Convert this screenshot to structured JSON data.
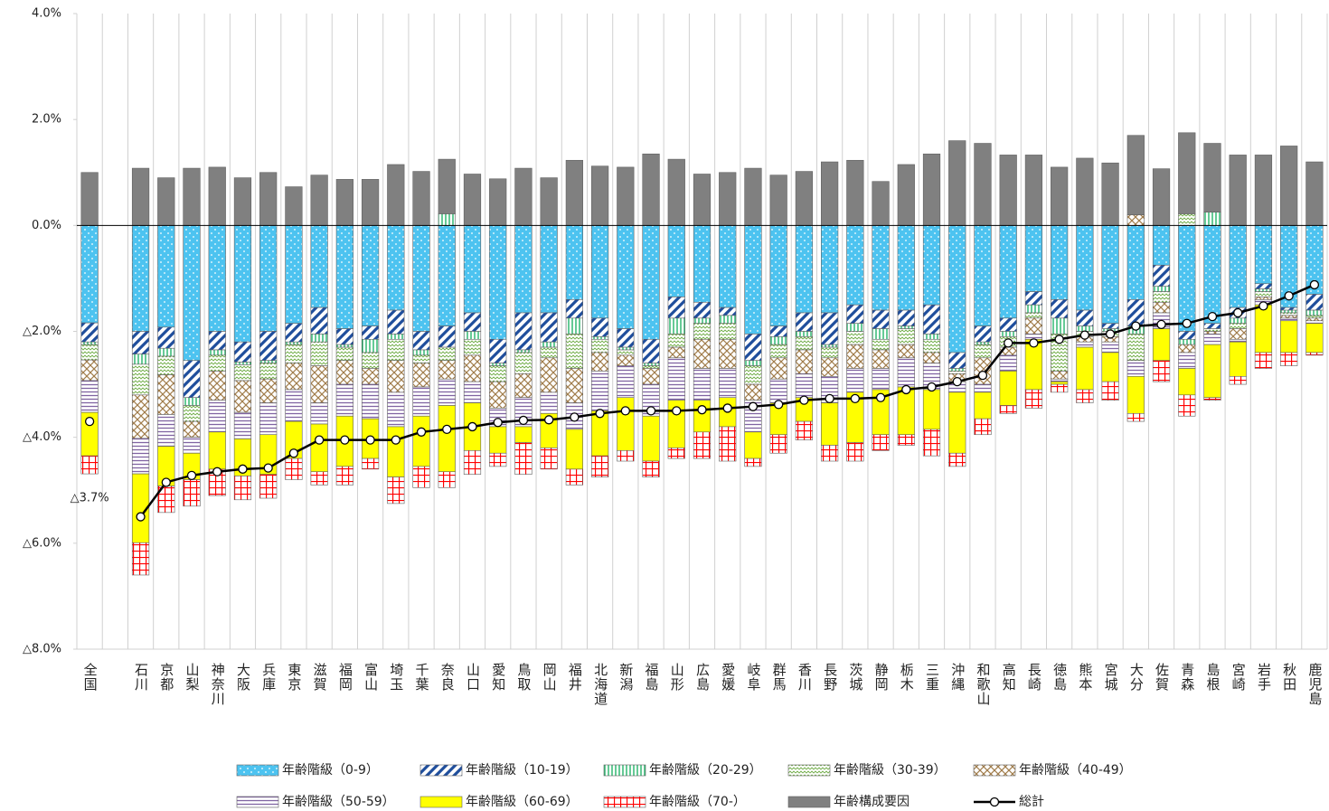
{
  "chart_data": {
    "type": "bar",
    "categories": [
      "全国",
      null,
      "石川",
      "京都",
      "山梨",
      "神奈川",
      "大阪",
      "兵庫",
      "東京",
      "滋賀",
      "福岡",
      "富山",
      "埼玉",
      "千葉",
      "奈良",
      "山口",
      "愛知",
      "鳥取",
      "岡山",
      "福井",
      "北海道",
      "新潟",
      "福島",
      "山形",
      "広島",
      "愛媛",
      "岐阜",
      "群馬",
      "香川",
      "長野",
      "茨城",
      "静岡",
      "栃木",
      "三重",
      "沖縄",
      "和歌山",
      "高知",
      "長崎",
      "徳島",
      "熊本",
      "宮城",
      "大分",
      "佐賀",
      "青森",
      "島根",
      "宮崎",
      "岩手",
      "秋田",
      "鹿児島"
    ],
    "ylim": [
      -8,
      4
    ],
    "yticks": [
      {
        "value": -8,
        "label": "△8.0%"
      },
      {
        "value": -6,
        "label": "△6.0%"
      },
      {
        "value": -4,
        "label": "△4.0%"
      },
      {
        "value": -2,
        "label": "△2.0%"
      },
      {
        "value": 0,
        "label": "0.0%"
      },
      {
        "value": 2,
        "label": "2.0%"
      },
      {
        "value": 4,
        "label": "4.0%"
      }
    ],
    "stacked": true,
    "series": [
      {
        "name": "年齢階級（0-9）",
        "color": "#4dc3f0",
        "values": [
          -1.84,
          null,
          -2.0,
          -1.92,
          -2.55,
          -2.0,
          -2.2,
          -2.0,
          -1.85,
          -1.55,
          -1.95,
          -1.9,
          -1.6,
          -2.0,
          -1.9,
          -1.65,
          -2.15,
          -1.65,
          -1.65,
          -1.4,
          -1.75,
          -1.95,
          -2.15,
          -1.35,
          -1.45,
          -1.55,
          -2.05,
          -1.9,
          -1.65,
          -1.65,
          -1.5,
          -1.6,
          -1.6,
          -1.5,
          -2.4,
          -1.9,
          -1.75,
          -1.25,
          -1.4,
          -1.6,
          -1.85,
          -1.4,
          -0.75,
          -2.0,
          -1.85,
          -1.55,
          -1.1,
          -1.55,
          -1.3
        ]
      },
      {
        "name": "年齢階級（10-19）",
        "color": "#1f4e9c",
        "values": [
          -0.36,
          null,
          -0.43,
          -0.4,
          -0.7,
          -0.35,
          -0.38,
          -0.55,
          -0.35,
          -0.5,
          -0.3,
          -0.25,
          -0.45,
          -0.35,
          -0.4,
          -0.35,
          -0.45,
          -0.7,
          -0.55,
          -0.35,
          -0.35,
          -0.35,
          -0.45,
          -0.4,
          -0.3,
          -0.15,
          -0.5,
          -0.2,
          -0.35,
          -0.6,
          -0.35,
          -0.35,
          -0.3,
          -0.55,
          -0.3,
          -0.3,
          -0.25,
          -0.25,
          -0.35,
          -0.3,
          -0.1,
          -0.5,
          -0.4,
          -0.15,
          -0.1,
          -0.2,
          -0.1,
          -0.05,
          -0.3
        ]
      },
      {
        "name": "年齢階級（20-29）",
        "color": "#00a651",
        "values": [
          -0.05,
          null,
          -0.19,
          -0.15,
          -0.15,
          -0.1,
          -0.05,
          -0.05,
          -0.05,
          -0.15,
          -0.05,
          -0.25,
          -0.1,
          -0.1,
          0.22,
          -0.15,
          -0.05,
          -0.05,
          -0.1,
          -0.3,
          -0.05,
          -0.05,
          -0.05,
          -0.3,
          -0.1,
          -0.15,
          -0.1,
          -0.15,
          -0.1,
          -0.05,
          -0.15,
          -0.2,
          -0.05,
          -0.1,
          -0.05,
          -0.05,
          -0.1,
          -0.15,
          -0.3,
          -0.1,
          -0.05,
          -0.15,
          -0.1,
          -0.1,
          0.25,
          -0.1,
          -0.05,
          -0.05,
          -0.1
        ]
      },
      {
        "name": "年齢階級（30-39）",
        "color": "#70ad47",
        "values": [
          -0.29,
          null,
          -0.58,
          -0.35,
          -0.3,
          -0.3,
          -0.3,
          -0.3,
          -0.35,
          -0.45,
          -0.25,
          -0.3,
          -0.4,
          -0.15,
          -0.25,
          -0.3,
          -0.3,
          -0.4,
          -0.2,
          -0.65,
          -0.25,
          -0.1,
          -0.05,
          -0.25,
          -0.3,
          -0.3,
          -0.35,
          -0.25,
          -0.25,
          -0.2,
          -0.25,
          -0.2,
          -0.3,
          -0.25,
          -0.05,
          -0.25,
          -0.2,
          -0.1,
          -0.7,
          -0.1,
          -0.1,
          -0.5,
          -0.2,
          0.22,
          -0.05,
          -0.1,
          -0.1,
          -0.05,
          -0.05
        ]
      },
      {
        "name": "年齢階級（40-49）",
        "color": "#a07c4a",
        "values": [
          -0.39,
          null,
          -0.82,
          -0.75,
          -0.3,
          -0.55,
          -0.6,
          -0.45,
          -0.5,
          -0.7,
          -0.45,
          -0.3,
          -0.6,
          -0.45,
          -0.35,
          -0.5,
          -0.5,
          -0.45,
          -0.65,
          -0.65,
          -0.35,
          -0.2,
          -0.3,
          -0.2,
          -0.55,
          -0.55,
          -0.3,
          -0.4,
          -0.45,
          -0.35,
          -0.45,
          -0.35,
          -0.25,
          -0.2,
          -0.15,
          -0.5,
          -0.15,
          -0.3,
          -0.15,
          -0.1,
          -0.1,
          0.2,
          -0.2,
          -0.15,
          -0.05,
          -0.2,
          -0.05,
          -0.05,
          -0.05
        ]
      },
      {
        "name": "年齢階級（50-59）",
        "color": "#8064a2",
        "values": [
          -0.6,
          null,
          -0.67,
          -0.6,
          -0.3,
          -0.6,
          -0.5,
          -0.6,
          -0.6,
          -0.4,
          -0.6,
          -0.65,
          -0.65,
          -0.55,
          -0.5,
          -0.4,
          -0.35,
          -0.55,
          -0.4,
          -0.5,
          -0.75,
          -0.6,
          -0.6,
          -0.8,
          -0.6,
          -0.55,
          -0.6,
          -0.45,
          -0.45,
          -0.5,
          -0.45,
          -0.4,
          -0.55,
          -0.5,
          -0.2,
          -0.15,
          -0.3,
          -0.1,
          -0.05,
          -0.1,
          -0.2,
          -0.3,
          -0.3,
          -0.3,
          -0.2,
          -0.05,
          -0.1,
          -0.05,
          -0.05
        ]
      },
      {
        "name": "年齢階級（60-69）",
        "color": "#ffff00",
        "values": [
          -0.82,
          null,
          -1.3,
          -0.75,
          -0.5,
          -0.7,
          -0.7,
          -0.75,
          -0.7,
          -0.9,
          -0.95,
          -0.75,
          -0.95,
          -0.95,
          -1.25,
          -0.9,
          -0.5,
          -0.3,
          -0.65,
          -0.75,
          -0.85,
          -1.0,
          -0.85,
          -0.9,
          -0.6,
          -0.55,
          -0.5,
          -0.6,
          -0.45,
          -0.8,
          -0.95,
          -0.85,
          -0.9,
          -0.75,
          -1.15,
          -0.5,
          -0.65,
          -0.95,
          -0.05,
          -0.8,
          -0.55,
          -0.7,
          -0.6,
          -0.5,
          -1.0,
          -0.65,
          -0.9,
          -0.6,
          -0.55
        ]
      },
      {
        "name": "年齢階級（70-）",
        "color": "#ff0000",
        "values": [
          -0.34,
          null,
          -0.61,
          -0.5,
          -0.5,
          -0.5,
          -0.45,
          -0.45,
          -0.4,
          -0.25,
          -0.35,
          -0.2,
          -0.5,
          -0.4,
          -0.3,
          -0.45,
          -0.25,
          -0.6,
          -0.4,
          -0.3,
          -0.4,
          -0.2,
          -0.3,
          -0.2,
          -0.5,
          -0.65,
          -0.15,
          -0.35,
          -0.35,
          -0.3,
          -0.35,
          -0.3,
          -0.2,
          -0.5,
          -0.25,
          -0.3,
          -0.15,
          -0.35,
          -0.15,
          -0.25,
          -0.35,
          -0.15,
          -0.4,
          -0.4,
          -0.05,
          -0.15,
          -0.3,
          -0.25,
          -0.05
        ]
      },
      {
        "name": "年齢構成要因",
        "color": "#808080",
        "values": [
          1.0,
          null,
          1.08,
          0.9,
          1.08,
          1.1,
          0.9,
          1.0,
          0.73,
          0.95,
          0.87,
          0.87,
          1.15,
          1.02,
          1.03,
          0.97,
          0.88,
          1.08,
          0.9,
          1.23,
          1.12,
          1.1,
          1.35,
          1.25,
          0.97,
          1.0,
          1.08,
          0.95,
          1.02,
          1.2,
          1.23,
          0.83,
          1.15,
          1.35,
          1.6,
          1.55,
          1.33,
          1.33,
          1.1,
          1.27,
          1.18,
          1.5,
          1.07,
          1.53,
          1.3,
          1.33,
          1.33,
          1.5,
          1.2
        ]
      },
      {
        "name": "総計",
        "color": "#000000",
        "type": "line",
        "values": [
          -3.7,
          null,
          -5.5,
          -4.85,
          -4.72,
          -4.65,
          -4.6,
          -4.58,
          -4.3,
          -4.05,
          -4.05,
          -4.05,
          -4.05,
          -3.9,
          -3.85,
          -3.8,
          -3.72,
          -3.68,
          -3.67,
          -3.62,
          -3.55,
          -3.5,
          -3.5,
          -3.5,
          -3.48,
          -3.45,
          -3.42,
          -3.38,
          -3.3,
          -3.27,
          -3.27,
          -3.25,
          -3.1,
          -3.05,
          -2.95,
          -2.83,
          -2.22,
          -2.22,
          -2.15,
          -2.07,
          -2.05,
          -1.9,
          -1.87,
          -1.85,
          -1.72,
          -1.65,
          -1.52,
          -1.33,
          -1.12
        ],
        "value_labels": [
          "△3.7%",
          null,
          null,
          null,
          null,
          null,
          null,
          null,
          null,
          null,
          null,
          null,
          null,
          null,
          null,
          null,
          null,
          null,
          null,
          null,
          null,
          null,
          null,
          null,
          null,
          null,
          null,
          null,
          null,
          null,
          null,
          null,
          null,
          null,
          null,
          null,
          null,
          null,
          null,
          null,
          null,
          null,
          null,
          null,
          null,
          null,
          null,
          null,
          null
        ]
      }
    ]
  }
}
